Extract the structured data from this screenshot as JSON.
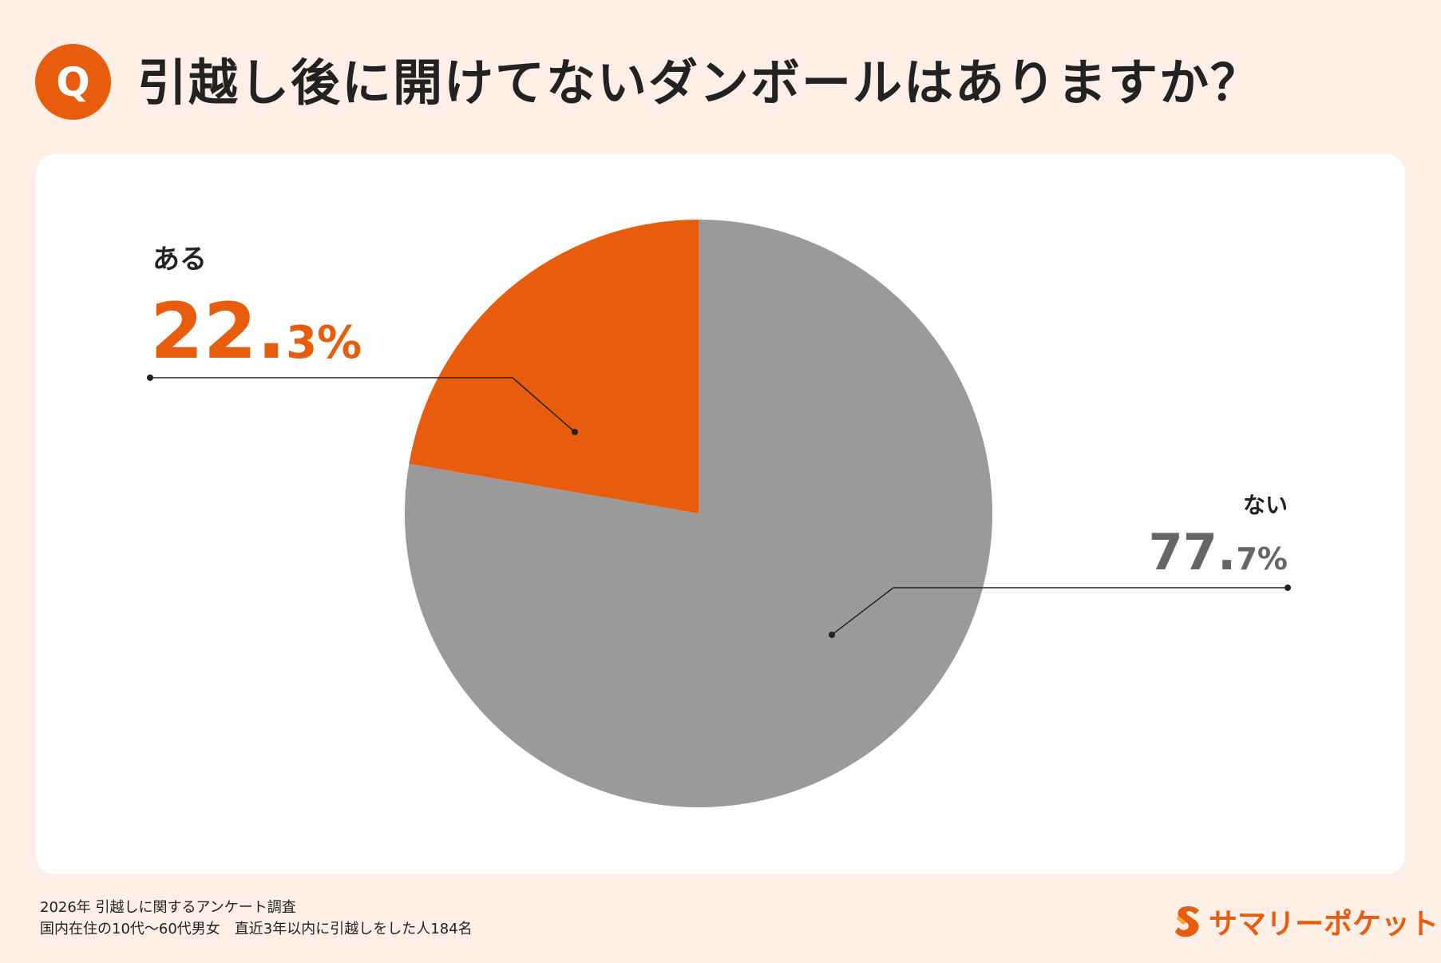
{
  "header": {
    "badge": "Q",
    "title": "引越し後に開けてないダンボールはありますか？"
  },
  "chart_data": {
    "type": "pie",
    "title": "引越し後に開けてないダンボールはありますか？",
    "slices": [
      {
        "label": "ある",
        "value": 22.3,
        "int_part": "22.",
        "dec_part": "3%",
        "color": "#e85c0d"
      },
      {
        "label": "ない",
        "value": 77.7,
        "int_part": "77.",
        "dec_part": "7%",
        "color": "#9a9a9a"
      }
    ],
    "start_angle_deg": 0,
    "direction": "counterclockwise"
  },
  "footer": {
    "line1": "2026年  引越しに関するアンケート調査",
    "line2": "国内在住の10代〜60代男女　直近3年以内に引越しをした人184名"
  },
  "brand": {
    "name": "サマリーポケット",
    "logo_icon": "s-logo-icon",
    "color": "#e85c0d"
  }
}
